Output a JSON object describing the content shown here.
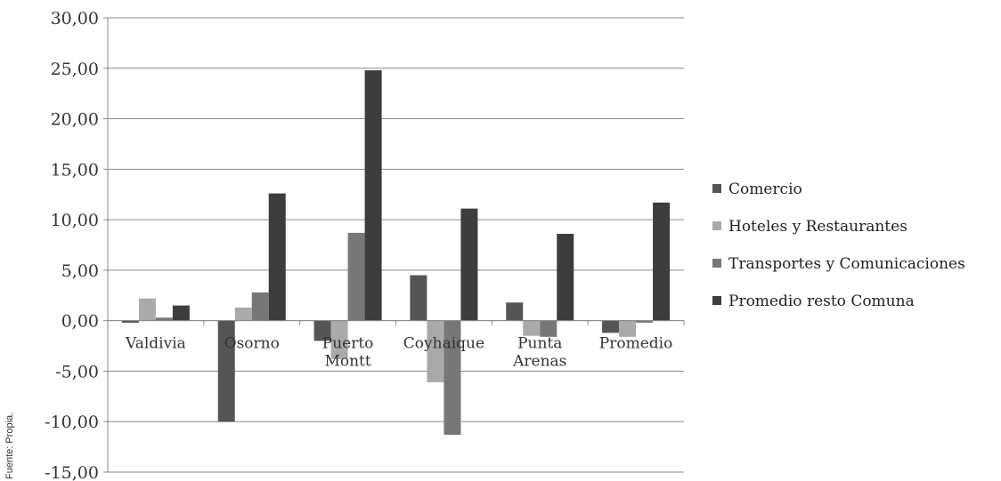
{
  "chart_data": {
    "type": "bar",
    "categories": [
      [
        "Valdivia"
      ],
      [
        "Osorno"
      ],
      [
        "Puerto",
        "Montt"
      ],
      [
        "Coyhaique"
      ],
      [
        "Punta",
        "Arenas"
      ],
      [
        "Promedio"
      ]
    ],
    "series": [
      {
        "name": "Comercio",
        "color": "#555555",
        "values": [
          -0.2,
          -10.0,
          -2.0,
          4.5,
          1.8,
          -1.2
        ]
      },
      {
        "name": "Hoteles y Restaurantes",
        "color": "#aaaaaa",
        "values": [
          2.2,
          1.3,
          -3.8,
          -6.1,
          -1.5,
          -1.6
        ]
      },
      {
        "name": "Transportes y Comunicaciones",
        "color": "#777777",
        "values": [
          0.3,
          2.8,
          8.7,
          -11.3,
          -1.6,
          -0.2
        ]
      },
      {
        "name": "Promedio resto Comuna",
        "color": "#3d3d3d",
        "values": [
          1.5,
          12.6,
          24.8,
          11.1,
          8.6,
          11.7
        ]
      }
    ],
    "ylim": [
      -15,
      30
    ],
    "yticks": [
      "30,00",
      "25,00",
      "20,00",
      "15,00",
      "10,00",
      "5,00",
      "0,00",
      "-5,00",
      "-10,00",
      "-15,00"
    ],
    "ytick_values": [
      30,
      25,
      20,
      15,
      10,
      5,
      0,
      -5,
      -10,
      -15
    ],
    "grid": true,
    "legend_position": "right"
  },
  "source_note": "Fuente: Propia."
}
